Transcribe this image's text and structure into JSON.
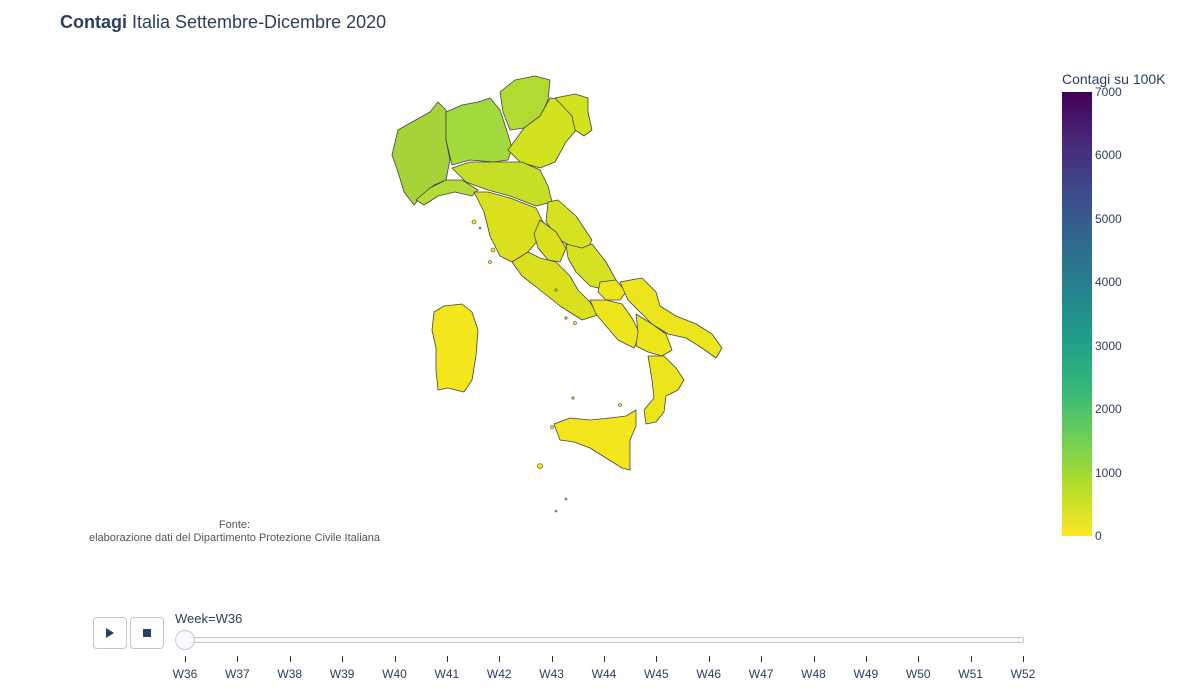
{
  "title": {
    "bold": "Contagi",
    "rest": " Italia Settembre-Dicembre 2020"
  },
  "source_note": {
    "line1": "Fonte:",
    "line2": "elaborazione dati del Dipartimento Protezione Civile Italiana"
  },
  "colorbar": {
    "title": "Contagi su 100K",
    "ticks": [
      "7000",
      "6000",
      "5000",
      "4000",
      "3000",
      "2000",
      "1000",
      "0"
    ],
    "range": [
      0,
      7000
    ],
    "colorscale": [
      "#440154",
      "#482878",
      "#3e4989",
      "#31688e",
      "#26828e",
      "#1f9e89",
      "#35b779",
      "#6ece58",
      "#b5de2b",
      "#fde725"
    ]
  },
  "map": {
    "region_colors": {
      "nord_ovest": "#a6d438",
      "lombardia": "#a2d93d",
      "trentino": "#b2da33",
      "veneto_friuli": "#d2e21f",
      "emilia": "#c6df26",
      "centro": "#dae01e",
      "sud": "#ece51c",
      "isole": "#f3e61c",
      "liguria": "#b5dc36",
      "marche_abruzzo": "#d6e121"
    },
    "border_color": "#444444"
  },
  "animation": {
    "play_icon": "play-icon",
    "stop_icon": "stop-icon",
    "current_label": "Week=W36",
    "weeks": [
      "W36",
      "W37",
      "W38",
      "W39",
      "W40",
      "W41",
      "W42",
      "W43",
      "W44",
      "W45",
      "W46",
      "W47",
      "W48",
      "W49",
      "W50",
      "W51",
      "W52"
    ],
    "current_index": 0
  }
}
